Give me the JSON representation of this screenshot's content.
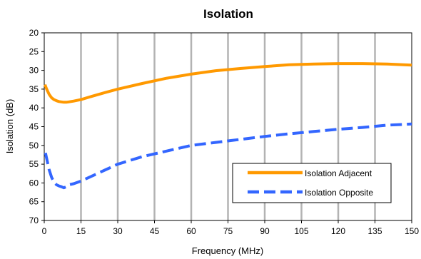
{
  "chart_data": {
    "type": "line",
    "title": "Isolation",
    "xlabel": "Frequency (MHz)",
    "ylabel": "Isolation (dB)",
    "xlim": [
      0,
      150
    ],
    "ylim": [
      20,
      70
    ],
    "y_inverted": true,
    "xticks": [
      0,
      15,
      30,
      45,
      60,
      75,
      90,
      105,
      120,
      135,
      150
    ],
    "yticks": [
      20,
      25,
      30,
      35,
      40,
      45,
      50,
      55,
      60,
      65,
      70
    ],
    "grid": "vertical",
    "legend_position": "bottom-right",
    "series": [
      {
        "name": "Isolation Adjacent",
        "color": "#FF9900",
        "style": "solid",
        "x": [
          0.3,
          1,
          2,
          3,
          4,
          5,
          6,
          7,
          8,
          9,
          10,
          12,
          15,
          20,
          25,
          30,
          40,
          50,
          60,
          70,
          80,
          90,
          100,
          110,
          120,
          130,
          140,
          150
        ],
        "y": [
          33.8,
          35,
          36.4,
          37.3,
          37.8,
          38.1,
          38.3,
          38.4,
          38.5,
          38.5,
          38.4,
          38.2,
          37.8,
          36.8,
          35.9,
          35.0,
          33.5,
          32.1,
          31.0,
          30.1,
          29.5,
          29.0,
          28.5,
          28.3,
          28.2,
          28.2,
          28.3,
          28.6
        ]
      },
      {
        "name": "Isolation Opposite",
        "color": "#3366FF",
        "style": "dashed",
        "x": [
          0.5,
          1,
          2,
          3,
          4,
          5,
          6,
          7,
          8,
          9,
          10,
          12,
          15,
          20,
          25,
          30,
          40,
          50,
          60,
          70,
          80,
          90,
          100,
          110,
          120,
          130,
          140,
          150
        ],
        "y": [
          52,
          53.5,
          56.5,
          58.5,
          59.8,
          60.5,
          60.8,
          61.0,
          61.3,
          61.0,
          60.5,
          60.2,
          59.5,
          58,
          56.5,
          55.0,
          53.0,
          51.5,
          50.0,
          49.2,
          48.4,
          47.6,
          46.9,
          46.3,
          45.7,
          45.2,
          44.6,
          44.3
        ]
      }
    ]
  }
}
